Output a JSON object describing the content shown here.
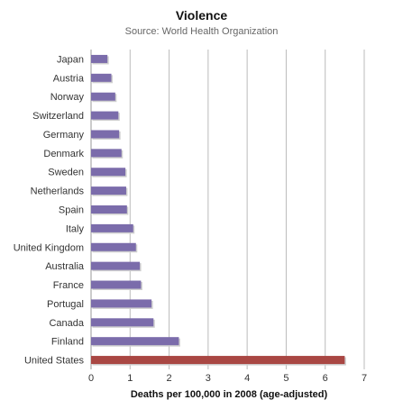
{
  "chart_data": {
    "type": "bar",
    "orientation": "horizontal",
    "title": "Violence",
    "subtitle": "Source: World Health Organization",
    "xlabel": "Deaths per 100,000 in 2008 (age-adjusted)",
    "ylabel": "",
    "xlim": [
      0,
      7
    ],
    "xticks": [
      "0",
      "1",
      "2",
      "3",
      "4",
      "5",
      "6",
      "7"
    ],
    "grid": true,
    "legend": "none",
    "categories": [
      "Japan",
      "Austria",
      "Norway",
      "Switzerland",
      "Germany",
      "Denmark",
      "Sweden",
      "Netherlands",
      "Spain",
      "Italy",
      "United Kingdom",
      "Australia",
      "France",
      "Portugal",
      "Canada",
      "Finland",
      "United States"
    ],
    "values": [
      0.42,
      0.52,
      0.62,
      0.7,
      0.72,
      0.78,
      0.88,
      0.9,
      0.92,
      1.08,
      1.15,
      1.25,
      1.28,
      1.55,
      1.6,
      2.25,
      6.5
    ],
    "colors": {
      "default": "#7b6cab",
      "highlight": "#a94743",
      "highlight_category": "United States",
      "grid": "#bbbbbb",
      "axis": "#999999"
    }
  }
}
